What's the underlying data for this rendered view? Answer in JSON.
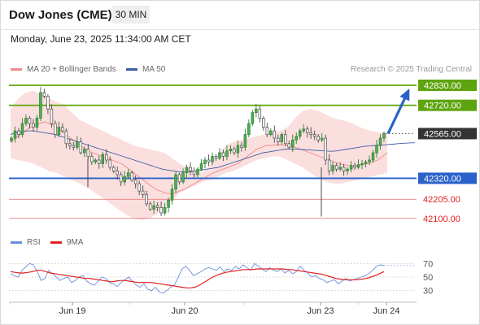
{
  "header": {
    "instrument": "Dow Jones (CME)",
    "timeframe": "30 MIN",
    "datetime": "Monday, June 23, 2025 11:34:00 AM CET"
  },
  "legend": {
    "ma20_label": "MA 20 + Bollinger Bands",
    "ma50_label": "MA 50",
    "rsi_label": "RSI",
    "rsi_ma_label": "9MA",
    "research_credit": "Research © 2025 Trading Central"
  },
  "colors": {
    "resistance": "#5ea40f",
    "pivot": "#2a62c9",
    "support": "#e46b6b",
    "current": "#333333",
    "bull_candle": "#2e7d32",
    "bear_candle": "#4a4a4a",
    "bollinger_fill": "#fbdcdc",
    "ma20": "#f08a8a",
    "ma50": "#3d5da6",
    "rsi": "#6b8fd6",
    "rsi_ma": "#e02020",
    "arrow": "#2a62c9"
  },
  "chart_data": [
    {
      "type": "candlestick",
      "y_range": [
        42050,
        42870
      ],
      "x_labels": [
        "Jun 19",
        "Jun 20",
        "Jun 23",
        "Jun 24"
      ],
      "levels": [
        {
          "value": 42830,
          "label": "42830.00",
          "kind": "resistance"
        },
        {
          "value": 42720,
          "label": "42720.00",
          "kind": "resistance"
        },
        {
          "value": 42565,
          "label": "42565.00",
          "kind": "current"
        },
        {
          "value": 42320,
          "label": "42320.00",
          "kind": "pivot"
        },
        {
          "value": 42205,
          "label": "42205.00",
          "kind": "support"
        },
        {
          "value": 42100,
          "label": "42100.00",
          "kind": "support"
        }
      ],
      "forecast_arrow": {
        "from": 42565,
        "to": 42800
      },
      "closes": [
        42540,
        42580,
        42560,
        42620,
        42650,
        42620,
        42600,
        42650,
        42790,
        42770,
        42700,
        42620,
        42560,
        42600,
        42580,
        42510,
        42500,
        42490,
        42520,
        42460,
        42480,
        42440,
        42410,
        42420,
        42400,
        42450,
        42420,
        42380,
        42360,
        42340,
        42300,
        42330,
        42350,
        42310,
        42290,
        42250,
        42230,
        42180,
        42150,
        42170,
        42160,
        42130,
        42160,
        42200,
        42260,
        42340,
        42300,
        42350,
        42380,
        42360,
        42340,
        42370,
        42400,
        42420,
        42410,
        42440,
        42430,
        42460,
        42440,
        42470,
        42480,
        42460,
        42500,
        42490,
        42560,
        42620,
        42680,
        42700,
        42650,
        42600,
        42560,
        42580,
        42540,
        42520,
        42560,
        42510,
        42490,
        42530,
        42550,
        42580,
        42590,
        42570,
        42560,
        42550,
        42530,
        42540,
        42420,
        42360,
        42390,
        42370,
        42380,
        42360,
        42370,
        42390,
        42380,
        42395,
        42400,
        42410,
        42420,
        42460,
        42500,
        42540,
        42565
      ],
      "ma20": [
        42520,
        42540,
        42560,
        42580,
        42600,
        42610,
        42620,
        42630,
        42620,
        42610,
        42590,
        42570,
        42550,
        42530,
        42510,
        42490,
        42470,
        42460,
        42450,
        42440,
        42430,
        42420,
        42410,
        42400,
        42380,
        42360,
        42340,
        42320,
        42300,
        42280,
        42260,
        42250,
        42240,
        42235,
        42240,
        42250,
        42260,
        42275,
        42290,
        42305,
        42320,
        42335,
        42350,
        42360,
        42370,
        42380,
        42390,
        42400,
        42420,
        42440,
        42460,
        42480,
        42490,
        42500,
        42500,
        42505,
        42505,
        42500,
        42495,
        42490,
        42480,
        42470,
        42460,
        42450,
        42440,
        42430,
        42420,
        42410,
        42400,
        42395,
        42390,
        42385,
        42390,
        42395,
        42400,
        42410,
        42420,
        42440,
        42460
      ],
      "ma50": [
        42560,
        42570,
        42575,
        42580,
        42580,
        42575,
        42570,
        42565,
        42560,
        42550,
        42540,
        42530,
        42520,
        42510,
        42500,
        42490,
        42480,
        42470,
        42460,
        42450,
        42440,
        42430,
        42420,
        42410,
        42400,
        42390,
        42380,
        42370,
        42365,
        42360,
        42355,
        42355,
        42355,
        42360,
        42365,
        42370,
        42375,
        42380,
        42390,
        42400,
        42410,
        42420,
        42430,
        42440,
        42450,
        42460,
        42465,
        42470,
        42475,
        42480,
        42480,
        42480,
        42478,
        42476,
        42474,
        42472,
        42470,
        42468,
        42470,
        42475,
        42480,
        42485,
        42490,
        42495,
        42497,
        42500,
        42502,
        42505,
        42507,
        42510,
        42512,
        42514,
        42515
      ],
      "bb_upper": [
        42700,
        42760,
        42790,
        42800,
        42780,
        42760,
        42740,
        42720,
        42680,
        42640,
        42620,
        42600,
        42580,
        42560,
        42540,
        42520,
        42500,
        42490,
        42480,
        42470,
        42460,
        42430,
        42400,
        42380,
        42360,
        42350,
        42400,
        42450,
        42500,
        42520,
        42530,
        42540,
        42550,
        42560,
        42570,
        42580,
        42600,
        42650,
        42690,
        42700,
        42690,
        42670,
        42650,
        42640,
        42630,
        42610,
        42590,
        42580,
        42570,
        42560
      ],
      "bb_lower": [
        42430,
        42420,
        42410,
        42400,
        42380,
        42360,
        42350,
        42330,
        42310,
        42290,
        42270,
        42240,
        42210,
        42180,
        42150,
        42120,
        42100,
        42090,
        42100,
        42120,
        42160,
        42200,
        42240,
        42260,
        42280,
        42300,
        42310,
        42330,
        42350,
        42360,
        42380,
        42400,
        42420,
        42430,
        42440,
        42440,
        42420,
        42400,
        42380,
        42350,
        42320,
        42300,
        42290,
        42290,
        42300,
        42310,
        42320,
        42330,
        42340,
        42350
      ]
    },
    {
      "type": "line",
      "title": "RSI",
      "y_range": [
        20,
        80
      ],
      "y_ticks": [
        70,
        50,
        30
      ],
      "rsi": [
        55,
        52,
        50,
        60,
        65,
        70,
        68,
        58,
        45,
        48,
        60,
        55,
        50,
        45,
        48,
        50,
        42,
        45,
        50,
        52,
        44,
        40,
        38,
        44,
        50,
        48,
        42,
        40,
        36,
        42,
        46,
        50,
        44,
        38,
        35,
        40,
        32,
        30,
        35,
        28,
        26,
        30,
        35,
        38,
        50,
        62,
        66,
        60,
        52,
        55,
        58,
        62,
        64,
        62,
        60,
        65,
        58,
        62,
        60,
        66,
        62,
        68,
        64,
        60,
        70,
        66,
        62,
        58,
        64,
        60,
        58,
        62,
        56,
        60,
        55,
        58,
        66,
        60,
        56,
        50,
        52,
        48,
        46,
        42,
        44,
        46,
        40,
        44,
        48,
        44,
        46,
        48,
        50,
        52,
        55,
        60,
        66,
        68,
        67
      ],
      "rsi_ma": [
        58,
        57,
        56,
        56,
        57,
        58,
        60,
        60,
        58,
        56,
        55,
        54,
        53,
        52,
        51,
        50,
        49,
        48,
        48,
        47,
        46,
        45,
        44,
        43,
        44,
        45,
        45,
        44,
        43,
        42,
        42,
        42,
        42,
        41,
        40,
        39,
        38,
        37,
        36,
        35,
        34,
        34,
        35,
        38,
        42,
        46,
        50,
        53,
        55,
        57,
        58,
        59,
        60,
        61,
        61,
        61,
        62,
        62,
        62,
        62,
        62,
        62,
        62,
        61,
        61,
        60,
        59,
        58,
        57,
        56,
        55,
        54,
        52,
        50,
        48,
        47,
        46,
        46,
        46,
        46,
        47,
        48,
        50,
        52,
        55,
        58
      ]
    }
  ]
}
